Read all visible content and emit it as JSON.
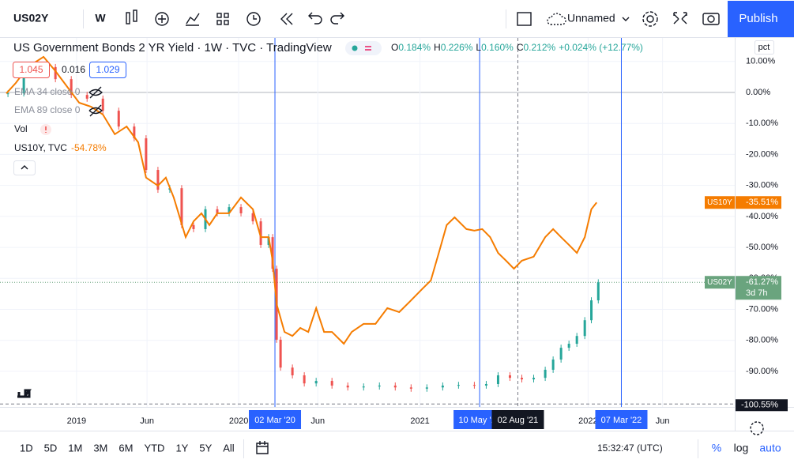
{
  "toolbar": {
    "symbol": "US02Y",
    "interval": "W",
    "layout": "Unnamed",
    "publish": "Publish"
  },
  "legend": {
    "title": "US Government Bonds 2 YR Yield · 1W · TVC · TradingView",
    "ohlc": [
      {
        "key": "O",
        "value": "0.184%"
      },
      {
        "key": "H",
        "value": "0.226%"
      },
      {
        "key": "L",
        "value": "0.160%"
      },
      {
        "key": "C",
        "value": "0.212%"
      }
    ],
    "change": "+0.024% (+12.77%)",
    "bid": "1.045",
    "spread": "0.016",
    "ask": "1.029",
    "indicators": [
      "EMA 34 close 0",
      "EMA 89 close 0",
      "Vol"
    ],
    "compare": {
      "name": "US10Y, TVC",
      "value": "-54.78%"
    }
  },
  "chart_data": {
    "type": "candlestick",
    "scale_label": "pct",
    "xlim": [
      0,
      221
    ],
    "xticks": [
      {
        "value": 21.3,
        "label": "2019"
      },
      {
        "value": 42.7,
        "label": "Jun"
      },
      {
        "value": 70.5,
        "label": "2020"
      },
      {
        "value": 94.5,
        "label": "Jun"
      },
      {
        "value": 125.5,
        "label": "2021"
      },
      {
        "value": 176.5,
        "label": "2022"
      },
      {
        "value": 199.1,
        "label": "Jun"
      }
    ],
    "vlines": [
      {
        "value": 81.5,
        "label": "02 Mar '20"
      },
      {
        "value": 143.6,
        "label": "10 May '21"
      },
      {
        "value": 186.6,
        "label": "07 Mar '22"
      }
    ],
    "crosshair": {
      "value": 155.2,
      "label": "02 Aug '21"
    },
    "ylim": [
      -101.5,
      17.6
    ],
    "yticks": [
      {
        "value": 10,
        "label": "10.00%"
      },
      {
        "value": 0,
        "label": "0.00%"
      },
      {
        "value": -10,
        "label": "-10.00%"
      },
      {
        "value": -20,
        "label": "-20.00%"
      },
      {
        "value": -30,
        "label": "-30.00%"
      },
      {
        "value": -40,
        "label": "-40.00%"
      },
      {
        "value": -50,
        "label": "-50.00%"
      },
      {
        "value": -60,
        "label": "-60.00%"
      },
      {
        "value": -70,
        "label": "-70.00%"
      },
      {
        "value": -80,
        "label": "-80.00%"
      },
      {
        "value": -90,
        "label": "-90.00%"
      }
    ],
    "grid": true,
    "series": [
      {
        "name": "US02Y",
        "color": "#6aa47e",
        "up_color": "#26a69a",
        "down_color": "#ef5350",
        "last_label": {
          "value": -61.27,
          "label": "-61.27%",
          "countdown": "3d 7h"
        },
        "x": [
          0.5,
          5.3,
          10.1,
          14.9,
          19.7,
          24.5,
          29.3,
          34.1,
          38.8,
          42.4,
          46.0,
          49.6,
          53.2,
          56.8,
          60.4,
          64.0,
          67.6,
          71.2,
          74.8,
          77.2,
          79.6,
          80.8,
          82.0,
          83.2,
          86.8,
          90.4,
          94.0,
          98.8,
          103.6,
          108.4,
          113.2,
          118.0,
          122.8,
          127.6,
          132.4,
          137.2,
          142.0,
          145.6,
          149.2,
          152.8,
          156.4,
          160.0,
          163.5,
          165.9,
          168.3,
          170.7,
          173.1,
          175.5,
          177.5,
          179.6
        ],
        "open": [
          -0.5,
          -0.3,
          5.6,
          8.2,
          4.3,
          -0.8,
          -2.0,
          -5.9,
          -11.0,
          -14.8,
          -25.0,
          -31.4,
          -30.9,
          -42.8,
          -44.1,
          -37.7,
          -39.0,
          -37.0,
          -39.0,
          -41.6,
          -49.2,
          -46.7,
          -56.9,
          -79.8,
          -88.8,
          -91.3,
          -93.9,
          -93.1,
          -94.6,
          -95.2,
          -94.9,
          -94.6,
          -95.2,
          -95.6,
          -95.2,
          -94.6,
          -94.4,
          -94.6,
          -94.1,
          -91.3,
          -92.1,
          -92.6,
          -92.1,
          -89.5,
          -86.2,
          -82.4,
          -81.1,
          -78.6,
          -73.5,
          -67.1
        ],
        "high": [
          0.7,
          6.6,
          9.2,
          9.2,
          5.3,
          0.2,
          -1.0,
          -4.9,
          -10.0,
          -13.8,
          -24.0,
          -29.9,
          -29.9,
          -41.8,
          -36.7,
          -36.7,
          -36.0,
          -36.0,
          -38.0,
          -40.6,
          -45.7,
          -45.7,
          -55.9,
          -78.8,
          -87.8,
          -90.3,
          -92.1,
          -92.1,
          -93.6,
          -93.9,
          -93.6,
          -93.6,
          -94.2,
          -94.2,
          -93.6,
          -93.4,
          -93.4,
          -93.1,
          -90.3,
          -90.3,
          -91.1,
          -91.1,
          -88.5,
          -85.2,
          -81.4,
          -80.1,
          -77.6,
          -72.5,
          -66.1,
          -60.3
        ],
        "low": [
          -1.5,
          -1.3,
          4.6,
          3.3,
          -1.8,
          -3.0,
          -6.9,
          -12.0,
          -15.8,
          -26.0,
          -32.4,
          -32.4,
          -43.8,
          -45.1,
          -45.1,
          -40.0,
          -40.0,
          -40.0,
          -42.6,
          -50.2,
          -50.2,
          -57.9,
          -80.8,
          -89.8,
          -92.3,
          -94.9,
          -94.9,
          -95.6,
          -96.2,
          -96.2,
          -95.9,
          -96.2,
          -96.6,
          -96.6,
          -96.2,
          -95.6,
          -95.6,
          -95.6,
          -95.1,
          -93.1,
          -93.6,
          -93.6,
          -93.1,
          -90.5,
          -87.2,
          -83.4,
          -82.1,
          -79.6,
          -74.5,
          -68.1
        ],
        "close": [
          -0.3,
          5.6,
          8.2,
          4.3,
          -0.8,
          -2.0,
          -5.9,
          -11.0,
          -14.8,
          -25.0,
          -31.4,
          -30.9,
          -42.8,
          -44.1,
          -37.7,
          -39.0,
          -37.0,
          -39.0,
          -41.6,
          -49.2,
          -46.7,
          -56.9,
          -79.8,
          -88.8,
          -91.3,
          -93.9,
          -93.1,
          -94.6,
          -95.2,
          -94.9,
          -94.6,
          -95.2,
          -95.6,
          -95.2,
          -94.6,
          -94.4,
          -94.6,
          -94.1,
          -91.3,
          -92.1,
          -92.6,
          -92.1,
          -89.5,
          -86.2,
          -82.4,
          -81.1,
          -78.6,
          -73.5,
          -67.1,
          -61.3
        ]
      },
      {
        "name": "US10Y",
        "type": "line",
        "color": "#f57c00",
        "last_label": {
          "value": -35.51,
          "label": "-35.51%"
        },
        "x": [
          0,
          2.9,
          6.5,
          11.3,
          14.9,
          18.5,
          22.1,
          25.7,
          29.3,
          32.9,
          36.5,
          40.0,
          42.4,
          46.0,
          48.4,
          50.8,
          54.4,
          56.8,
          59.2,
          61.6,
          64.0,
          67.6,
          71.2,
          74.8,
          77.2,
          79.6,
          80.8,
          82.0,
          84.4,
          86.8,
          89.2,
          91.6,
          94.0,
          96.4,
          98.8,
          102.4,
          104.8,
          108.4,
          112.0,
          115.6,
          119.2,
          122.8,
          126.4,
          128.8,
          131.2,
          133.6,
          136.0,
          139.6,
          142.0,
          144.4,
          146.8,
          149.2,
          151.6,
          154.0,
          156.4,
          160.0,
          163.5,
          165.9,
          168.3,
          170.7,
          173.1,
          175.5,
          177.5,
          179.1
        ],
        "values": [
          -0.3,
          3.1,
          8.2,
          11.5,
          6.9,
          1.8,
          -3.3,
          -4.6,
          -7.1,
          -13.5,
          -11.0,
          -16.1,
          -27.5,
          -30.1,
          -27.5,
          -33.9,
          -46.7,
          -41.6,
          -39.0,
          -42.8,
          -39.0,
          -39.0,
          -33.9,
          -37.7,
          -46.7,
          -46.7,
          -54.3,
          -68.3,
          -77.3,
          -78.6,
          -76.0,
          -77.3,
          -69.6,
          -77.3,
          -77.3,
          -81.1,
          -77.3,
          -74.7,
          -74.7,
          -69.6,
          -70.9,
          -67.1,
          -63.2,
          -60.7,
          -51.8,
          -42.8,
          -40.3,
          -44.1,
          -44.6,
          -44.1,
          -46.7,
          -51.8,
          -54.3,
          -56.9,
          -54.3,
          -53.0,
          -46.7,
          -44.1,
          -46.7,
          -49.2,
          -51.8,
          -46.7,
          -37.7,
          -35.5
        ]
      }
    ],
    "bottom_label": {
      "value": -100.55,
      "label": "-100.55%"
    }
  },
  "bottom_bar": {
    "ranges": [
      "1D",
      "5D",
      "1M",
      "3M",
      "6M",
      "YTD",
      "1Y",
      "5Y",
      "All"
    ],
    "clock": "15:32:47 (UTC)",
    "modes": [
      "%",
      "log",
      "auto"
    ]
  }
}
